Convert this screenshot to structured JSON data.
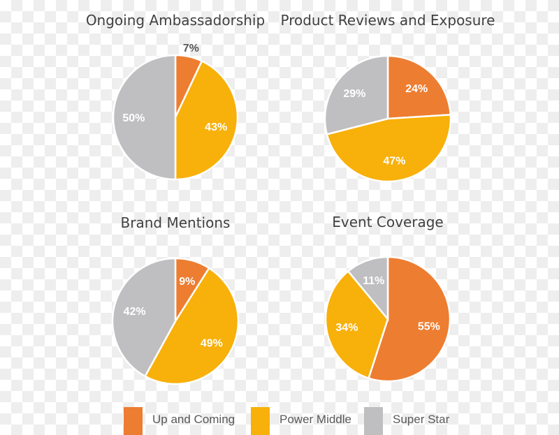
{
  "chart_data": [
    {
      "type": "pie",
      "title": "Ongoing Ambassadorship",
      "labels": [
        "Up and Coming",
        "Power Middle",
        "Super Star"
      ],
      "values": [
        7,
        43,
        50
      ]
    },
    {
      "type": "pie",
      "title": "Product Reviews and Exposure",
      "labels": [
        "Up and Coming",
        "Power Middle",
        "Super Star"
      ],
      "values": [
        24,
        47,
        29
      ]
    },
    {
      "type": "pie",
      "title": "Brand Mentions",
      "labels": [
        "Up and Coming",
        "Power Middle",
        "Super Star"
      ],
      "values": [
        9,
        49,
        42
      ]
    },
    {
      "type": "pie",
      "title": "Event Coverage",
      "labels": [
        "Up and Coming",
        "Power Middle",
        "Super Star"
      ],
      "values": [
        55,
        34,
        11
      ]
    }
  ],
  "legend": [
    {
      "label": "Up and Coming",
      "color": "#ED7D31"
    },
    {
      "label": "Power Middle",
      "color": "#F8B00A"
    },
    {
      "label": "Super Star",
      "color": "#BFBEC1"
    }
  ],
  "legend_placement": "bottom"
}
